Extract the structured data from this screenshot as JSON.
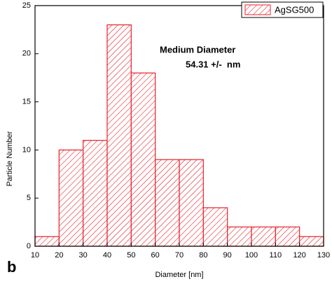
{
  "chart_data": {
    "type": "histogram",
    "bins": [
      10,
      20,
      30,
      40,
      50,
      60,
      70,
      80,
      90,
      100,
      110,
      120,
      130
    ],
    "values": [
      1,
      10,
      11,
      23,
      18,
      9,
      9,
      4,
      2,
      2,
      2,
      1
    ],
    "series_name": "AgSG500",
    "color": "#e8202a",
    "xlabel": "Diameter [nm]",
    "ylabel": "Particle Number",
    "xlim": [
      10,
      130
    ],
    "xticks": [
      10,
      20,
      30,
      40,
      50,
      60,
      70,
      80,
      90,
      100,
      110,
      120,
      130
    ],
    "ylim": [
      0,
      25
    ],
    "yticks": [
      0,
      5,
      10,
      15,
      20,
      25
    ],
    "annotations": [
      "Medium Diameter",
      "54.31 +/-  nm"
    ],
    "panel_label": "b",
    "legend": "upper right"
  }
}
